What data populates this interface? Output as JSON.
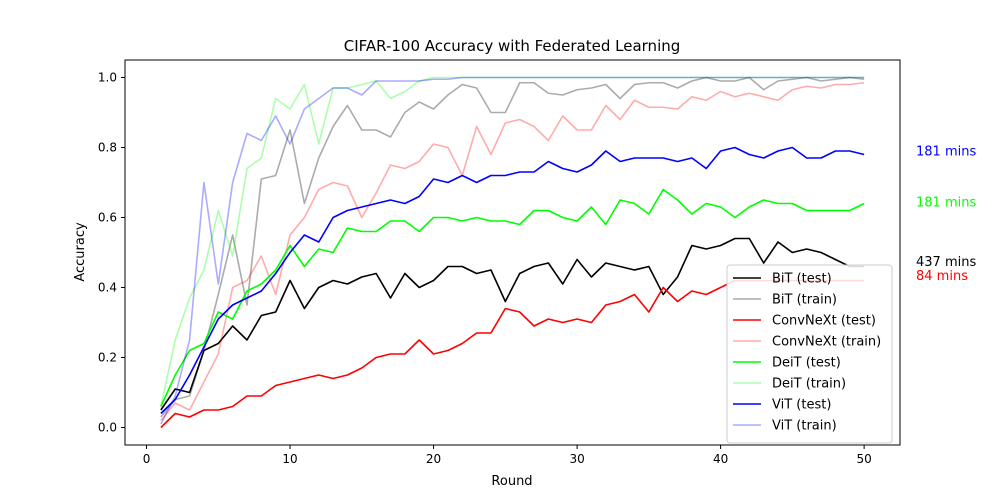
{
  "chart_data": {
    "type": "line",
    "title": "CIFAR-100 Accuracy with Federated Learning",
    "xlabel": "Round",
    "ylabel": "Accuracy",
    "xlim": [
      -1.5,
      52.5
    ],
    "ylim": [
      -0.05,
      1.05
    ],
    "xticks": [
      0,
      10,
      20,
      30,
      40,
      50
    ],
    "yticks": [
      0.0,
      0.2,
      0.4,
      0.6,
      0.8,
      1.0
    ],
    "ytick_labels": [
      "0.0",
      "0.2",
      "0.4",
      "0.6",
      "0.8",
      "1.0"
    ],
    "grid": false,
    "legend_position": "lower-right",
    "series": [
      {
        "name": "BiT (test)",
        "color": "#000000",
        "opacity": 1,
        "x": [
          1,
          2,
          3,
          4,
          5,
          6,
          7,
          8,
          9,
          10,
          11,
          12,
          13,
          14,
          15,
          16,
          17,
          18,
          19,
          20,
          21,
          22,
          23,
          24,
          25,
          26,
          27,
          28,
          29,
          30,
          31,
          32,
          33,
          34,
          35,
          36,
          37,
          38,
          39,
          40,
          41,
          42,
          43,
          44,
          45,
          46,
          47,
          48,
          49,
          50
        ],
        "values": [
          0.05,
          0.11,
          0.1,
          0.22,
          0.24,
          0.29,
          0.25,
          0.32,
          0.33,
          0.42,
          0.34,
          0.4,
          0.42,
          0.41,
          0.43,
          0.44,
          0.37,
          0.44,
          0.4,
          0.42,
          0.46,
          0.46,
          0.44,
          0.45,
          0.36,
          0.44,
          0.46,
          0.47,
          0.41,
          0.48,
          0.43,
          0.47,
          0.46,
          0.45,
          0.46,
          0.38,
          0.43,
          0.52,
          0.51,
          0.52,
          0.54,
          0.54,
          0.47,
          0.53,
          0.5,
          0.51,
          0.5,
          0.48,
          0.46,
          0.46
        ]
      },
      {
        "name": "BiT (train)",
        "color": "#000000",
        "opacity": 0.33,
        "x": [
          1,
          2,
          3,
          4,
          5,
          6,
          7,
          8,
          9,
          10,
          11,
          12,
          13,
          14,
          15,
          16,
          17,
          18,
          19,
          20,
          21,
          22,
          23,
          24,
          25,
          26,
          27,
          28,
          29,
          30,
          31,
          32,
          33,
          34,
          35,
          36,
          37,
          38,
          39,
          40,
          41,
          42,
          43,
          44,
          45,
          46,
          47,
          48,
          49,
          50
        ],
        "values": [
          0.03,
          0.08,
          0.09,
          0.22,
          0.38,
          0.55,
          0.35,
          0.71,
          0.72,
          0.85,
          0.64,
          0.77,
          0.86,
          0.92,
          0.85,
          0.85,
          0.83,
          0.9,
          0.93,
          0.91,
          0.95,
          0.98,
          0.97,
          0.9,
          0.9,
          0.985,
          0.985,
          0.955,
          0.95,
          0.965,
          0.97,
          0.98,
          0.94,
          0.98,
          0.985,
          0.985,
          0.97,
          0.99,
          1.0,
          0.99,
          0.99,
          1.0,
          0.965,
          0.99,
          0.995,
          1.0,
          0.99,
          0.995,
          1.0,
          0.995
        ]
      },
      {
        "name": "ConvNeXt (test)",
        "color": "#ff0000",
        "opacity": 1,
        "x": [
          1,
          2,
          3,
          4,
          5,
          6,
          7,
          8,
          9,
          10,
          11,
          12,
          13,
          14,
          15,
          16,
          17,
          18,
          19,
          20,
          21,
          22,
          23,
          24,
          25,
          26,
          27,
          28,
          29,
          30,
          31,
          32,
          33,
          34,
          35,
          36,
          37,
          38,
          39,
          40,
          41,
          42,
          43,
          44,
          45,
          46,
          47,
          48,
          49,
          50
        ],
        "values": [
          0.0,
          0.04,
          0.03,
          0.05,
          0.05,
          0.06,
          0.09,
          0.09,
          0.12,
          0.13,
          0.14,
          0.15,
          0.14,
          0.15,
          0.17,
          0.2,
          0.21,
          0.21,
          0.25,
          0.21,
          0.22,
          0.24,
          0.27,
          0.27,
          0.34,
          0.33,
          0.29,
          0.31,
          0.3,
          0.31,
          0.3,
          0.35,
          0.36,
          0.38,
          0.33,
          0.4,
          0.36,
          0.39,
          0.38,
          0.4,
          0.42,
          0.42,
          0.42,
          0.42,
          0.42,
          0.42,
          0.42,
          0.42,
          0.42,
          0.42
        ]
      },
      {
        "name": "ConvNeXt (train)",
        "color": "#ff0000",
        "opacity": 0.33,
        "x": [
          1,
          2,
          3,
          4,
          5,
          6,
          7,
          8,
          9,
          10,
          11,
          12,
          13,
          14,
          15,
          16,
          17,
          18,
          19,
          20,
          21,
          22,
          23,
          24,
          25,
          26,
          27,
          28,
          29,
          30,
          31,
          32,
          33,
          34,
          35,
          36,
          37,
          38,
          39,
          40,
          41,
          42,
          43,
          44,
          45,
          46,
          47,
          48,
          49,
          50
        ],
        "values": [
          0.02,
          0.07,
          0.05,
          0.13,
          0.21,
          0.4,
          0.42,
          0.49,
          0.38,
          0.55,
          0.6,
          0.68,
          0.7,
          0.69,
          0.6,
          0.67,
          0.75,
          0.74,
          0.76,
          0.81,
          0.8,
          0.72,
          0.86,
          0.78,
          0.87,
          0.88,
          0.86,
          0.82,
          0.89,
          0.85,
          0.85,
          0.92,
          0.88,
          0.935,
          0.915,
          0.915,
          0.91,
          0.945,
          0.935,
          0.96,
          0.945,
          0.955,
          0.945,
          0.935,
          0.965,
          0.975,
          0.97,
          0.98,
          0.98,
          0.985
        ]
      },
      {
        "name": "DeiT (test)",
        "color": "#00ff00",
        "opacity": 1,
        "x": [
          1,
          2,
          3,
          4,
          5,
          6,
          7,
          8,
          9,
          10,
          11,
          12,
          13,
          14,
          15,
          16,
          17,
          18,
          19,
          20,
          21,
          22,
          23,
          24,
          25,
          26,
          27,
          28,
          29,
          30,
          31,
          32,
          33,
          34,
          35,
          36,
          37,
          38,
          39,
          40,
          41,
          42,
          43,
          44,
          45,
          46,
          47,
          48,
          49,
          50
        ],
        "values": [
          0.06,
          0.15,
          0.22,
          0.24,
          0.33,
          0.31,
          0.39,
          0.41,
          0.45,
          0.52,
          0.46,
          0.51,
          0.5,
          0.57,
          0.56,
          0.56,
          0.59,
          0.59,
          0.56,
          0.6,
          0.6,
          0.59,
          0.6,
          0.59,
          0.59,
          0.58,
          0.62,
          0.62,
          0.6,
          0.59,
          0.63,
          0.58,
          0.65,
          0.64,
          0.61,
          0.68,
          0.65,
          0.61,
          0.64,
          0.63,
          0.6,
          0.63,
          0.65,
          0.64,
          0.64,
          0.62,
          0.62,
          0.62,
          0.62,
          0.64
        ]
      },
      {
        "name": "DeiT (train)",
        "color": "#00ff00",
        "opacity": 0.33,
        "x": [
          1,
          2,
          3,
          4,
          5,
          6,
          7,
          8,
          9,
          10,
          11,
          12,
          13,
          14,
          15,
          16,
          17,
          18,
          19,
          20,
          21,
          22,
          23,
          24,
          25,
          26,
          27,
          28,
          29,
          30,
          31,
          32,
          33,
          34,
          35,
          36,
          37,
          38,
          39,
          40,
          41,
          42,
          43,
          44,
          45,
          46,
          47,
          48,
          49,
          50
        ],
        "values": [
          0.06,
          0.25,
          0.37,
          0.45,
          0.62,
          0.49,
          0.74,
          0.77,
          0.94,
          0.91,
          0.98,
          0.81,
          0.97,
          0.97,
          0.98,
          0.99,
          0.94,
          0.96,
          0.99,
          1.0,
          1.0,
          1.0,
          1.0,
          1.0,
          1.0,
          1.0,
          1.0,
          1.0,
          1.0,
          1.0,
          1.0,
          1.0,
          1.0,
          1.0,
          1.0,
          1.0,
          1.0,
          1.0,
          1.0,
          1.0,
          1.0,
          1.0,
          1.0,
          1.0,
          1.0,
          1.0,
          1.0,
          1.0,
          1.0,
          1.0
        ]
      },
      {
        "name": "ViT (test)",
        "color": "#0000ff",
        "opacity": 1,
        "x": [
          1,
          2,
          3,
          4,
          5,
          6,
          7,
          8,
          9,
          10,
          11,
          12,
          13,
          14,
          15,
          16,
          17,
          18,
          19,
          20,
          21,
          22,
          23,
          24,
          25,
          26,
          27,
          28,
          29,
          30,
          31,
          32,
          33,
          34,
          35,
          36,
          37,
          38,
          39,
          40,
          41,
          42,
          43,
          44,
          45,
          46,
          47,
          48,
          49,
          50
        ],
        "values": [
          0.04,
          0.08,
          0.15,
          0.23,
          0.31,
          0.35,
          0.37,
          0.39,
          0.44,
          0.5,
          0.55,
          0.53,
          0.6,
          0.62,
          0.63,
          0.64,
          0.65,
          0.64,
          0.66,
          0.71,
          0.7,
          0.72,
          0.7,
          0.72,
          0.72,
          0.73,
          0.73,
          0.76,
          0.74,
          0.73,
          0.75,
          0.79,
          0.76,
          0.77,
          0.77,
          0.77,
          0.76,
          0.77,
          0.74,
          0.79,
          0.8,
          0.78,
          0.77,
          0.79,
          0.8,
          0.77,
          0.77,
          0.79,
          0.79,
          0.78
        ]
      },
      {
        "name": "ViT (train)",
        "color": "#0000ff",
        "opacity": 0.33,
        "x": [
          1,
          2,
          3,
          4,
          5,
          6,
          7,
          8,
          9,
          10,
          11,
          12,
          13,
          14,
          15,
          16,
          17,
          18,
          19,
          20,
          21,
          22,
          23,
          24,
          25,
          26,
          27,
          28,
          29,
          30,
          31,
          32,
          33,
          34,
          35,
          36,
          37,
          38,
          39,
          40,
          41,
          42,
          43,
          44,
          45,
          46,
          47,
          48,
          49,
          50
        ],
        "values": [
          0.01,
          0.09,
          0.25,
          0.7,
          0.41,
          0.7,
          0.84,
          0.82,
          0.89,
          0.81,
          0.91,
          0.94,
          0.97,
          0.97,
          0.95,
          0.99,
          0.99,
          0.99,
          0.99,
          0.995,
          0.995,
          1.0,
          1.0,
          1.0,
          1.0,
          1.0,
          1.0,
          1.0,
          1.0,
          1.0,
          1.0,
          1.0,
          1.0,
          1.0,
          1.0,
          1.0,
          1.0,
          1.0,
          1.0,
          1.0,
          1.0,
          1.0,
          1.0,
          1.0,
          1.0,
          1.0,
          1.0,
          1.0,
          1.0,
          1.0
        ]
      }
    ],
    "annotations": [
      {
        "text": "181 mins",
        "color": "#0000ff",
        "y": 0.79
      },
      {
        "text": "181 mins",
        "color": "#00ff00",
        "y": 0.645
      },
      {
        "text": "437 mins",
        "color": "#000000",
        "y": 0.475
      },
      {
        "text": "84 mins",
        "color": "#ff0000",
        "y": 0.435
      }
    ]
  }
}
